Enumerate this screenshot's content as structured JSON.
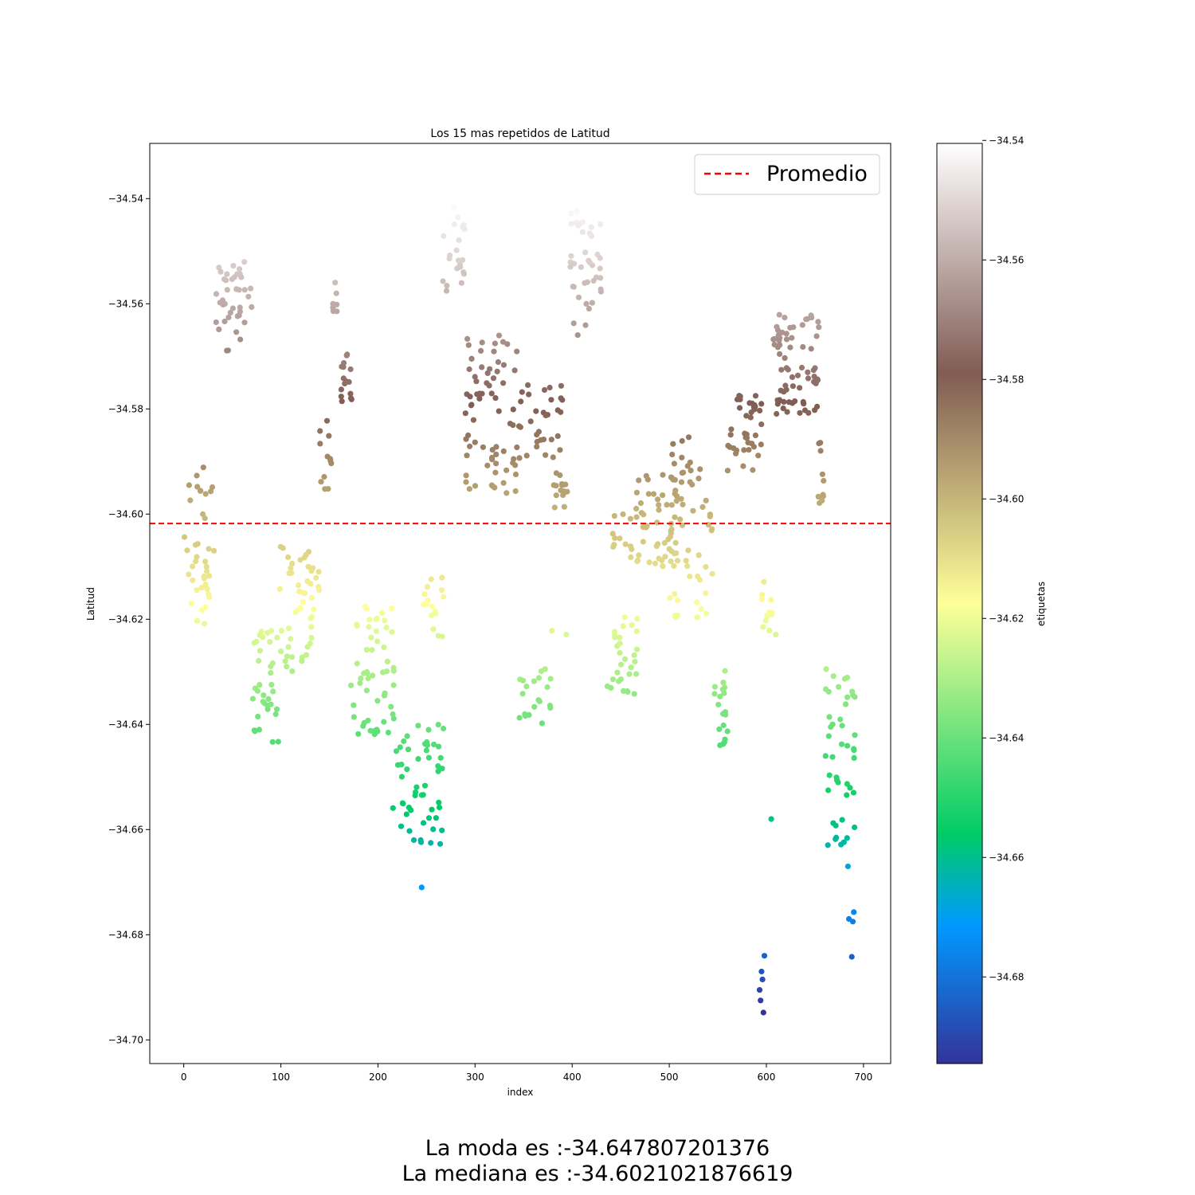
{
  "chart_data": {
    "type": "scatter",
    "title": "Los 15 mas repetidos de Latitud",
    "xlabel": "index",
    "ylabel": "Latitud",
    "xlim": [
      -35,
      728
    ],
    "ylim": [
      -34.7045,
      -34.5295
    ],
    "xticks": [
      0,
      100,
      200,
      300,
      400,
      500,
      600,
      700
    ],
    "yticks": [
      -34.54,
      -34.56,
      -34.58,
      -34.6,
      -34.62,
      -34.64,
      -34.66,
      -34.68,
      -34.7
    ],
    "ytick_labels": [
      "−34.54",
      "−34.56",
      "−34.58",
      "−34.60",
      "−34.62",
      "−34.64",
      "−34.66",
      "−34.68",
      "−34.70"
    ],
    "grid": false,
    "mean_line": {
      "y": -34.6018,
      "label": "Promedio",
      "color": "#ff0000",
      "style": "dashed"
    },
    "legend": {
      "placement": "top-right",
      "entries": [
        "Promedio"
      ]
    },
    "colorbar": {
      "label": "etiquetas",
      "range": [
        -34.6945,
        -34.5405
      ],
      "ticks": [
        -34.54,
        -34.56,
        -34.58,
        -34.6,
        -34.62,
        -34.64,
        -34.66,
        -34.68
      ],
      "tick_labels": [
        "−34.54",
        "−34.56",
        "−34.58",
        "−34.60",
        "−34.62",
        "−34.64",
        "−34.66",
        "−34.68"
      ],
      "colormap": "terrain"
    },
    "clusters": [
      {
        "x": [
          0,
          32
        ],
        "y": [
          -34.621,
          -34.591
        ],
        "n": 40
      },
      {
        "x": [
          33,
          70
        ],
        "y": [
          -34.569,
          -34.552
        ],
        "n": 40
      },
      {
        "x": [
          70,
          98
        ],
        "y": [
          -34.644,
          -34.622
        ],
        "n": 35
      },
      {
        "x": [
          98,
          140
        ],
        "y": [
          -34.63,
          -34.606
        ],
        "n": 50
      },
      {
        "x": [
          140,
          152
        ],
        "y": [
          -34.596,
          -34.582
        ],
        "n": 12
      },
      {
        "x": [
          153,
          160
        ],
        "y": [
          -34.562,
          -34.555
        ],
        "n": 8
      },
      {
        "x": [
          162,
          174
        ],
        "y": [
          -34.579,
          -34.569
        ],
        "n": 16
      },
      {
        "x": [
          172,
          218
        ],
        "y": [
          -34.642,
          -34.617
        ],
        "n": 55
      },
      {
        "x": [
          215,
          268
        ],
        "y": [
          -34.663,
          -34.64
        ],
        "n": 50
      },
      {
        "x": [
          245,
          268
        ],
        "y": [
          -34.624,
          -34.611
        ],
        "n": 16
      },
      {
        "x": [
          265,
          290
        ],
        "y": [
          -34.558,
          -34.541
        ],
        "n": 22
      },
      {
        "x": [
          290,
          348
        ],
        "y": [
          -34.596,
          -34.564
        ],
        "n": 75
      },
      {
        "x": [
          345,
          380
        ],
        "y": [
          -34.64,
          -34.629
        ],
        "n": 20
      },
      {
        "x": [
          345,
          390
        ],
        "y": [
          -34.59,
          -34.575
        ],
        "n": 30
      },
      {
        "x": [
          378,
          395
        ],
        "y": [
          -34.623,
          -34.622
        ],
        "n": 2
      },
      {
        "x": [
          380,
          398
        ],
        "y": [
          -34.599,
          -34.592
        ],
        "n": 16
      },
      {
        "x": [
          398,
          432
        ],
        "y": [
          -34.566,
          -34.541
        ],
        "n": 40
      },
      {
        "x": [
          434,
          468
        ],
        "y": [
          -34.635,
          -34.619
        ],
        "n": 30
      },
      {
        "x": [
          440,
          462
        ],
        "y": [
          -34.609,
          -34.599
        ],
        "n": 12
      },
      {
        "x": [
          465,
          510
        ],
        "y": [
          -34.61,
          -34.592
        ],
        "n": 50
      },
      {
        "x": [
          500,
          545
        ],
        "y": [
          -34.62,
          -34.597
        ],
        "n": 40
      },
      {
        "x": [
          500,
          532
        ],
        "y": [
          -34.595,
          -34.585
        ],
        "n": 18
      },
      {
        "x": [
          545,
          560
        ],
        "y": [
          -34.644,
          -34.628
        ],
        "n": 20
      },
      {
        "x": [
          560,
          595
        ],
        "y": [
          -34.592,
          -34.576
        ],
        "n": 40
      },
      {
        "x": [
          590,
          610
        ],
        "y": [
          -34.623,
          -34.612
        ],
        "n": 12
      },
      {
        "x": [
          605,
          655
        ],
        "y": [
          -34.581,
          -34.562
        ],
        "n": 70
      },
      {
        "x": [
          652,
          660
        ],
        "y": [
          -34.598,
          -34.586
        ],
        "n": 10
      },
      {
        "x": [
          660,
          692
        ],
        "y": [
          -34.663,
          -34.629
        ],
        "n": 45
      }
    ],
    "points": [
      [
        245,
        -34.671
      ],
      [
        605,
        -34.658
      ],
      [
        237,
        -34.662
      ],
      [
        244,
        -34.662
      ],
      [
        593,
        -34.6905
      ],
      [
        594,
        -34.6925
      ],
      [
        595,
        -34.687
      ],
      [
        596,
        -34.6885
      ],
      [
        597,
        -34.6948
      ],
      [
        598,
        -34.684
      ],
      [
        684,
        -34.667
      ],
      [
        685,
        -34.677
      ],
      [
        688,
        -34.6842
      ],
      [
        689,
        -34.6775
      ],
      [
        690,
        -34.6757
      ]
    ]
  },
  "footer": {
    "moda": "La moda es :-34.647807201376",
    "mediana": "La mediana es :-34.6021021876619"
  }
}
